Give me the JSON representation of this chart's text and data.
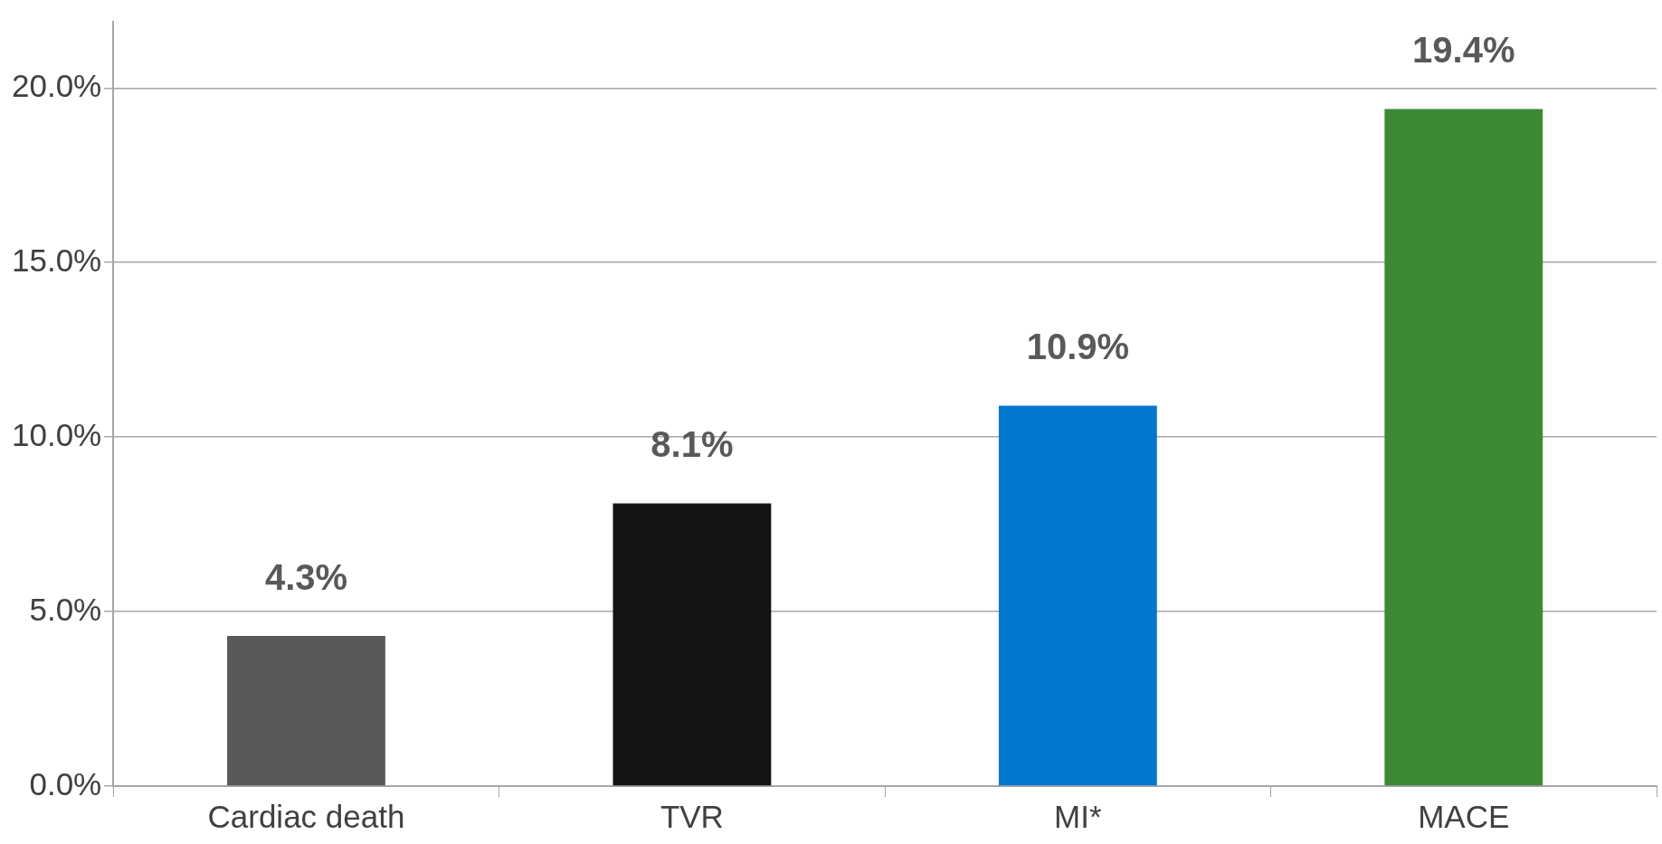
{
  "chart_data": {
    "type": "bar",
    "categories": [
      "Cardiac death",
      "TVR",
      "MI*",
      "MACE"
    ],
    "values": [
      4.3,
      8.1,
      10.9,
      19.4
    ],
    "colors": [
      "#575a57",
      "#141414",
      "#0477cf",
      "#3c8a35"
    ],
    "value_labels": [
      "4.3%",
      "8.1%",
      "10.9%",
      "19.4%"
    ],
    "ylim": [
      0,
      21.9
    ],
    "yticks": [
      {
        "value": 0,
        "label": "0.0%"
      },
      {
        "value": 5,
        "label": "5.0%"
      },
      {
        "value": 10,
        "label": "10.0%"
      },
      {
        "value": 15,
        "label": "15.0%"
      },
      {
        "value": 20,
        "label": "20.0%"
      }
    ],
    "grid": "y",
    "legend": false
  }
}
